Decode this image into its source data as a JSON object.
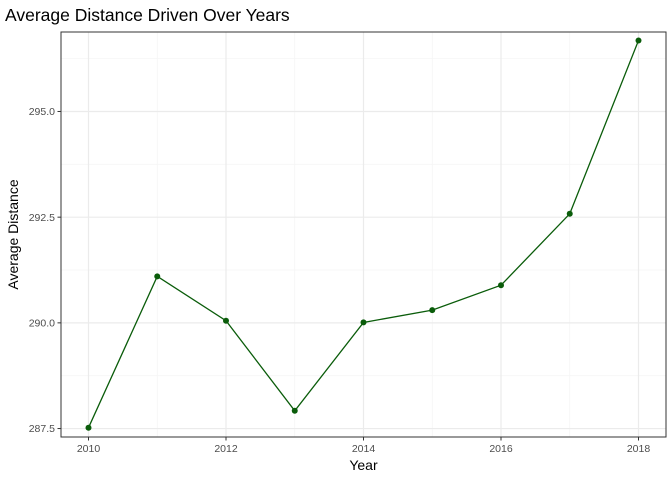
{
  "chart_data": {
    "type": "line",
    "title": "Average Distance Driven Over Years",
    "xlabel": "Year",
    "ylabel": "Average Distance",
    "x": [
      2010,
      2011,
      2012,
      2013,
      2014,
      2015,
      2016,
      2017,
      2018
    ],
    "series": [
      {
        "values": [
          287.52,
          291.1,
          290.05,
          287.92,
          290.01,
          290.3,
          290.89,
          292.58,
          296.68
        ]
      }
    ],
    "xlim": [
      2009.6,
      2018.4
    ],
    "ylim": [
      287.3,
      296.88
    ],
    "xticks": [
      "2010",
      "2012",
      "2014",
      "2016",
      "2018"
    ],
    "yticks": [
      "287.5",
      "290.0",
      "292.5",
      "295.0"
    ],
    "grid": true,
    "legend": "none",
    "colors": {
      "line": "#0a5c0a",
      "point": "#0a5c0a",
      "grid_major": "#ebebeb",
      "grid_minor": "#f5f5f5",
      "panel_border": "#333333"
    }
  }
}
